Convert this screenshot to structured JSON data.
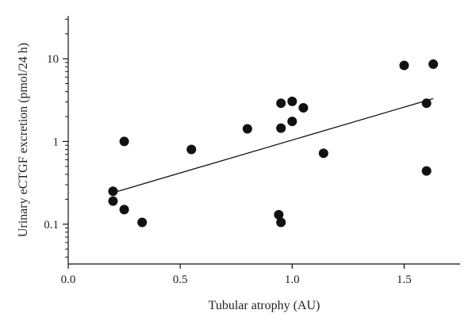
{
  "chart_data": {
    "type": "scatter",
    "title": "",
    "xlabel": "Tubular atrophy (AU)",
    "ylabel": "Urinary eCTGF excretion (pmol/24 h)",
    "xlim": [
      0.0,
      1.75
    ],
    "ylim": [
      0.033,
      33
    ],
    "y_scale": "log",
    "grid": false,
    "x_ticks": [
      {
        "value": 0.0,
        "label": "0.0"
      },
      {
        "value": 0.5,
        "label": "0.5"
      },
      {
        "value": 1.0,
        "label": "1.0"
      },
      {
        "value": 1.5,
        "label": "1.5"
      }
    ],
    "y_ticks": [
      {
        "value": 0.1,
        "label": "0.1"
      },
      {
        "value": 1,
        "label": "1"
      },
      {
        "value": 10,
        "label": "10"
      }
    ],
    "points": [
      {
        "x": 0.2,
        "y": 0.25
      },
      {
        "x": 0.2,
        "y": 0.19
      },
      {
        "x": 0.25,
        "y": 0.15
      },
      {
        "x": 0.25,
        "y": 1.0
      },
      {
        "x": 0.33,
        "y": 0.105
      },
      {
        "x": 0.55,
        "y": 0.8
      },
      {
        "x": 0.8,
        "y": 1.42
      },
      {
        "x": 0.94,
        "y": 0.13
      },
      {
        "x": 0.95,
        "y": 0.105
      },
      {
        "x": 0.95,
        "y": 2.9
      },
      {
        "x": 0.95,
        "y": 1.45
      },
      {
        "x": 1.0,
        "y": 3.05
      },
      {
        "x": 1.0,
        "y": 1.75
      },
      {
        "x": 1.05,
        "y": 2.55
      },
      {
        "x": 1.14,
        "y": 0.72
      },
      {
        "x": 1.5,
        "y": 8.3
      },
      {
        "x": 1.6,
        "y": 2.9
      },
      {
        "x": 1.6,
        "y": 0.44
      },
      {
        "x": 1.63,
        "y": 8.6
      }
    ],
    "regression_line": {
      "x": [
        0.2,
        1.63
      ],
      "y": [
        0.24,
        3.3
      ]
    },
    "colors": {
      "points": "#111111",
      "line": "#111111",
      "axis": "#111111"
    }
  }
}
